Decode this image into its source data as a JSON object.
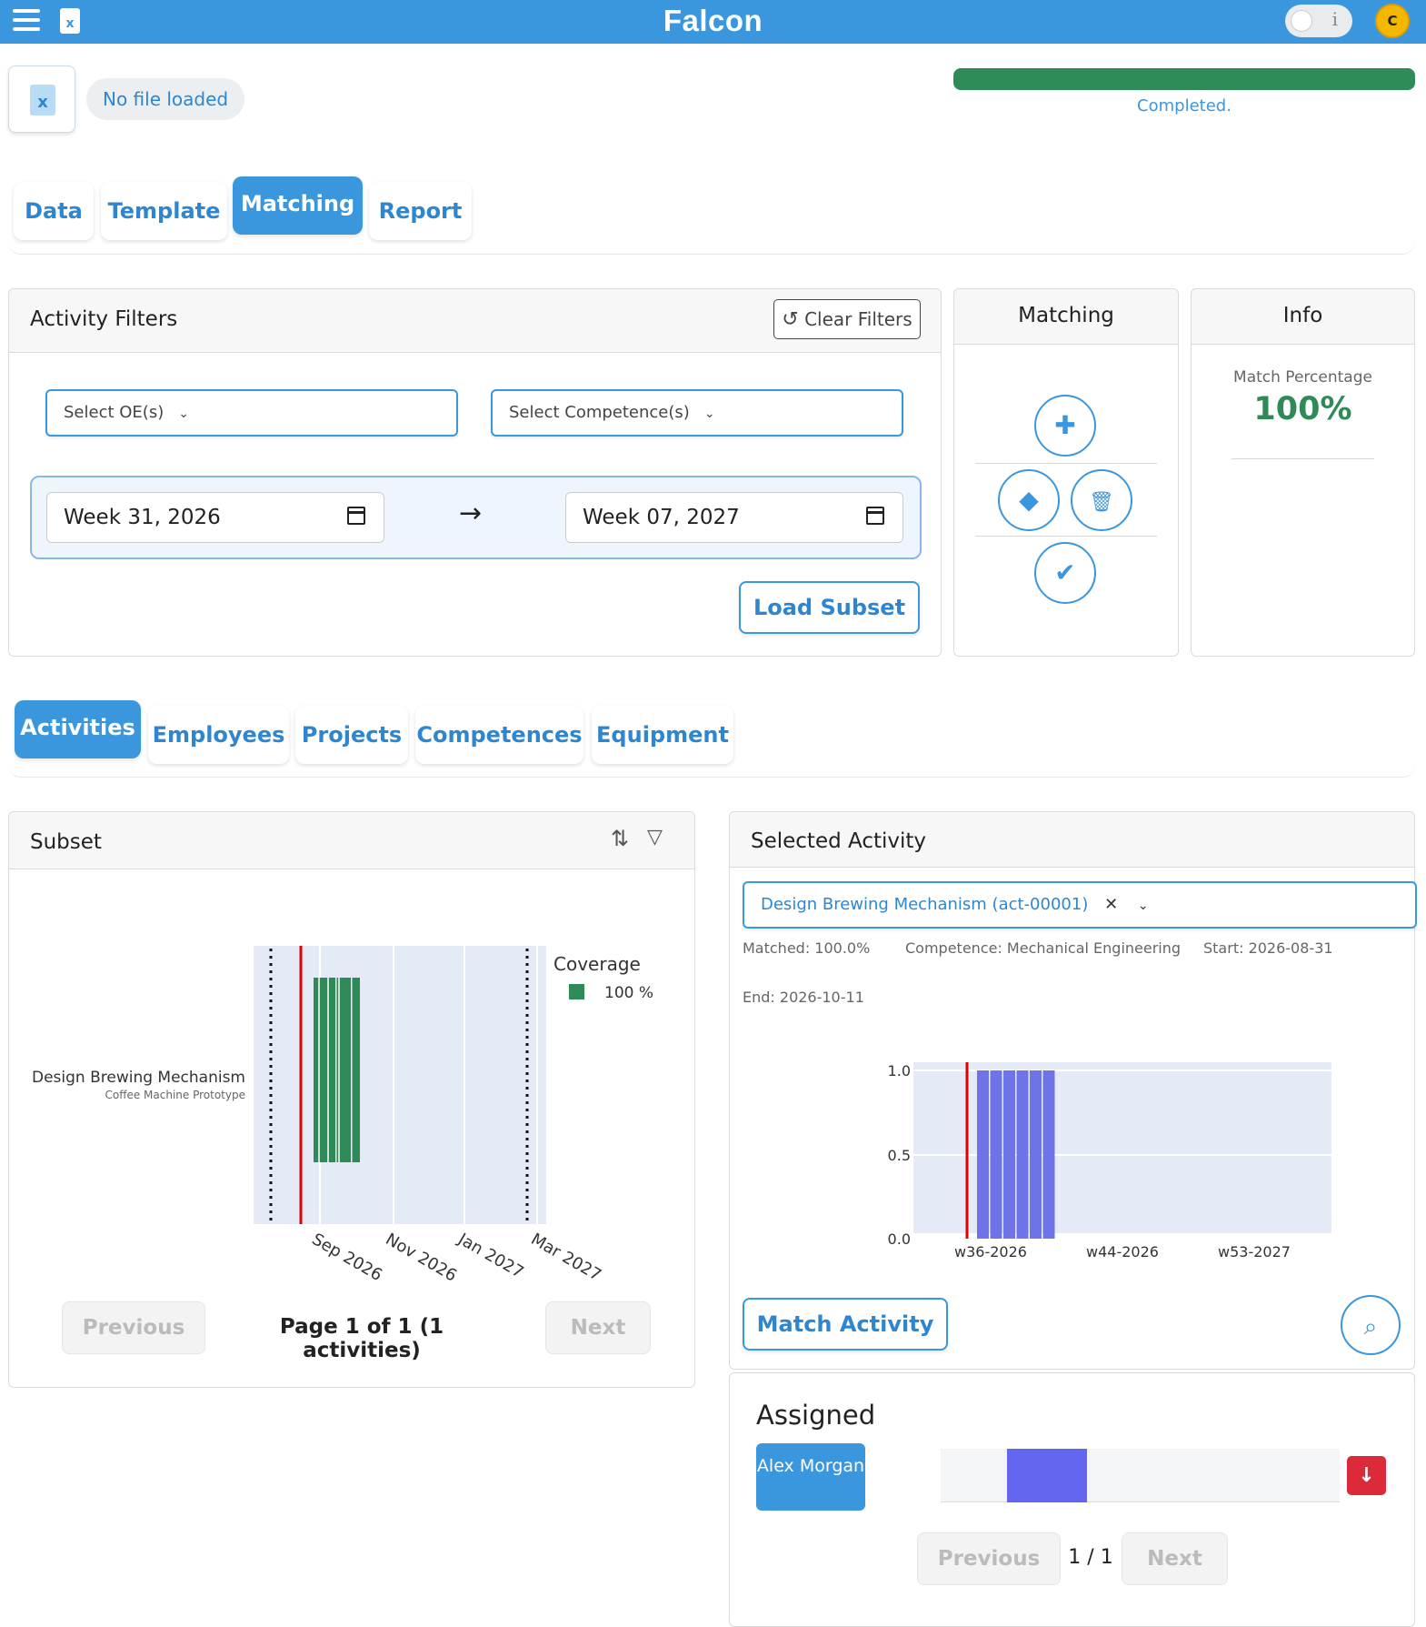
{
  "app": {
    "title": "Falcon",
    "info_toggle": "i",
    "user_initial": "C"
  },
  "file": {
    "status": "No file loaded",
    "icon": "excel-file-icon"
  },
  "progress": {
    "value": 1.0,
    "label": "Completed.",
    "color": "#2e8b57"
  },
  "main_tabs": [
    "Data",
    "Template",
    "Matching",
    "Report"
  ],
  "active_main_tab": "Matching",
  "filters": {
    "title": "Activity Filters",
    "clear_label": "Clear Filters",
    "oe_placeholder": "Select OE(s)",
    "competence_placeholder": "Select Competence(s)",
    "date_from": "Week 31, 2026",
    "date_to": "Week 07, 2027",
    "load_label": "Load Subset"
  },
  "matching_panel": {
    "title": "Matching"
  },
  "info_panel": {
    "title": "Info",
    "match_label": "Match Percentage",
    "match_value": "100%"
  },
  "sub_tabs": [
    "Activities",
    "Employees",
    "Projects",
    "Competences",
    "Equipment"
  ],
  "active_sub_tab": "Activities",
  "subset": {
    "title": "Subset",
    "prev_label": "Previous",
    "next_label": "Next",
    "page_text": "Page 1 of 1 (1 activities)"
  },
  "selected": {
    "title": "Selected Activity",
    "activity": "Design Brewing Mechanism (act-00001)",
    "matched": "Matched: 100.0%",
    "competence": "Competence: Mechanical Engineering",
    "start": "Start: 2026-08-31",
    "end": "End: 2026-10-11",
    "match_button": "Match Activity"
  },
  "assigned": {
    "title": "Assigned",
    "employee": "Alex Morgan",
    "pager": "1 / 1",
    "prev_label": "Previous",
    "next_label": "Next"
  },
  "chart_data": [
    {
      "type": "bar",
      "chart_id": "subset-gantt",
      "orientation": "horizontal",
      "rows": [
        {
          "label": "Design Brewing Mechanism",
          "sublabel": "Coffee Machine Prototype",
          "start": "2026-08-31",
          "end": "2026-10-11",
          "coverage": 100
        }
      ],
      "x_ticks": [
        "Sep 2026",
        "Nov 2026",
        "Jan 2027",
        "Mar 2027"
      ],
      "legend_title": "Coverage",
      "legend": [
        {
          "label": "100 %",
          "color": "#2e8b57"
        }
      ],
      "markers": {
        "today_line": "red",
        "window_bounds": "dotted black"
      }
    },
    {
      "type": "bar",
      "chart_id": "selected-activity-weeks",
      "x_ticks": [
        "w36-2026",
        "w44-2026",
        "w53-2027"
      ],
      "y_ticks": [
        "0.0",
        "0.5",
        "1.0"
      ],
      "ylim": [
        0,
        1
      ],
      "values": [
        1,
        1,
        1,
        1,
        1,
        1
      ],
      "bar_color": "#6f73e8",
      "markers": {
        "today_line": "red"
      }
    }
  ]
}
